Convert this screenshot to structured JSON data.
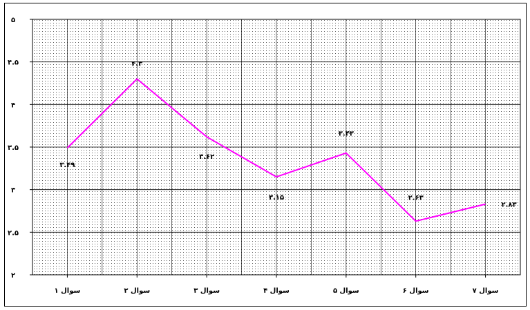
{
  "chart_data": {
    "type": "line",
    "categories": [
      "سوال ۱",
      "سوال ۲",
      "سوال ۳",
      "سوال ۴",
      "سوال ۵",
      "سوال ۶",
      "سوال ۷"
    ],
    "values": [
      3.49,
      4.3,
      3.62,
      3.15,
      3.43,
      2.63,
      2.83
    ],
    "data_labels": [
      "۳.۴۹",
      "۴.۳",
      "۳.۶۲",
      "۳.۱۵",
      "۳.۴۳",
      "۲.۶۳",
      "۲.۸۳"
    ],
    "ylim": [
      2,
      5
    ],
    "yticks": [
      2,
      2.5,
      3,
      3.5,
      4,
      4.5,
      5
    ],
    "ytick_labels": [
      "۲",
      "۲.۵",
      "۳",
      "۳.۵",
      "۴",
      "۴.۵",
      "۵"
    ],
    "title": "",
    "xlabel": "",
    "ylabel": "",
    "grid": true,
    "legend": "none",
    "line_color": "#ff00ff",
    "grid_color": "#000000"
  }
}
